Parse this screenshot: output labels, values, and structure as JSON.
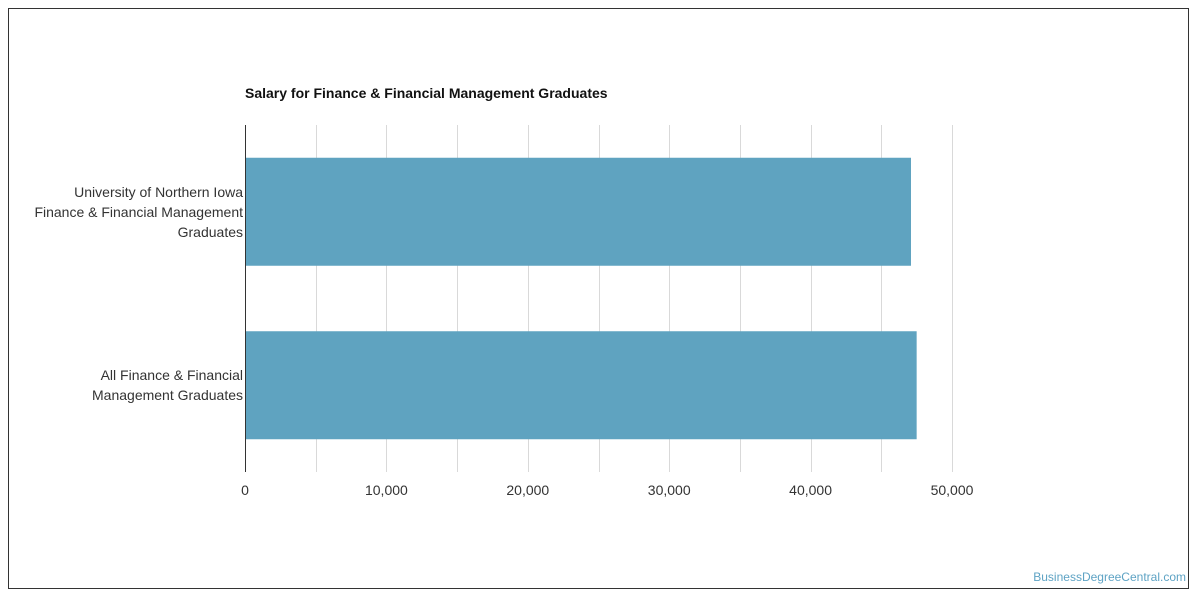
{
  "chart_data": {
    "type": "bar",
    "orientation": "horizontal",
    "title": "Salary for Finance & Financial Management Graduates",
    "categories": [
      [
        "University of Northern Iowa",
        "Finance & Financial Management",
        "Graduates"
      ],
      [
        "All Finance & Financial",
        "Management Graduates"
      ]
    ],
    "values": [
      47100,
      47500
    ],
    "xlim": [
      0,
      50000
    ],
    "xticks": [
      0,
      10000,
      20000,
      30000,
      40000,
      50000
    ],
    "xtick_labels": [
      "0",
      "10,000",
      "20,000",
      "30,000",
      "40,000",
      "50,000"
    ],
    "grid": true,
    "bar_color": "#5fa3c0"
  },
  "watermark": "BusinessDegreeCentral.com"
}
